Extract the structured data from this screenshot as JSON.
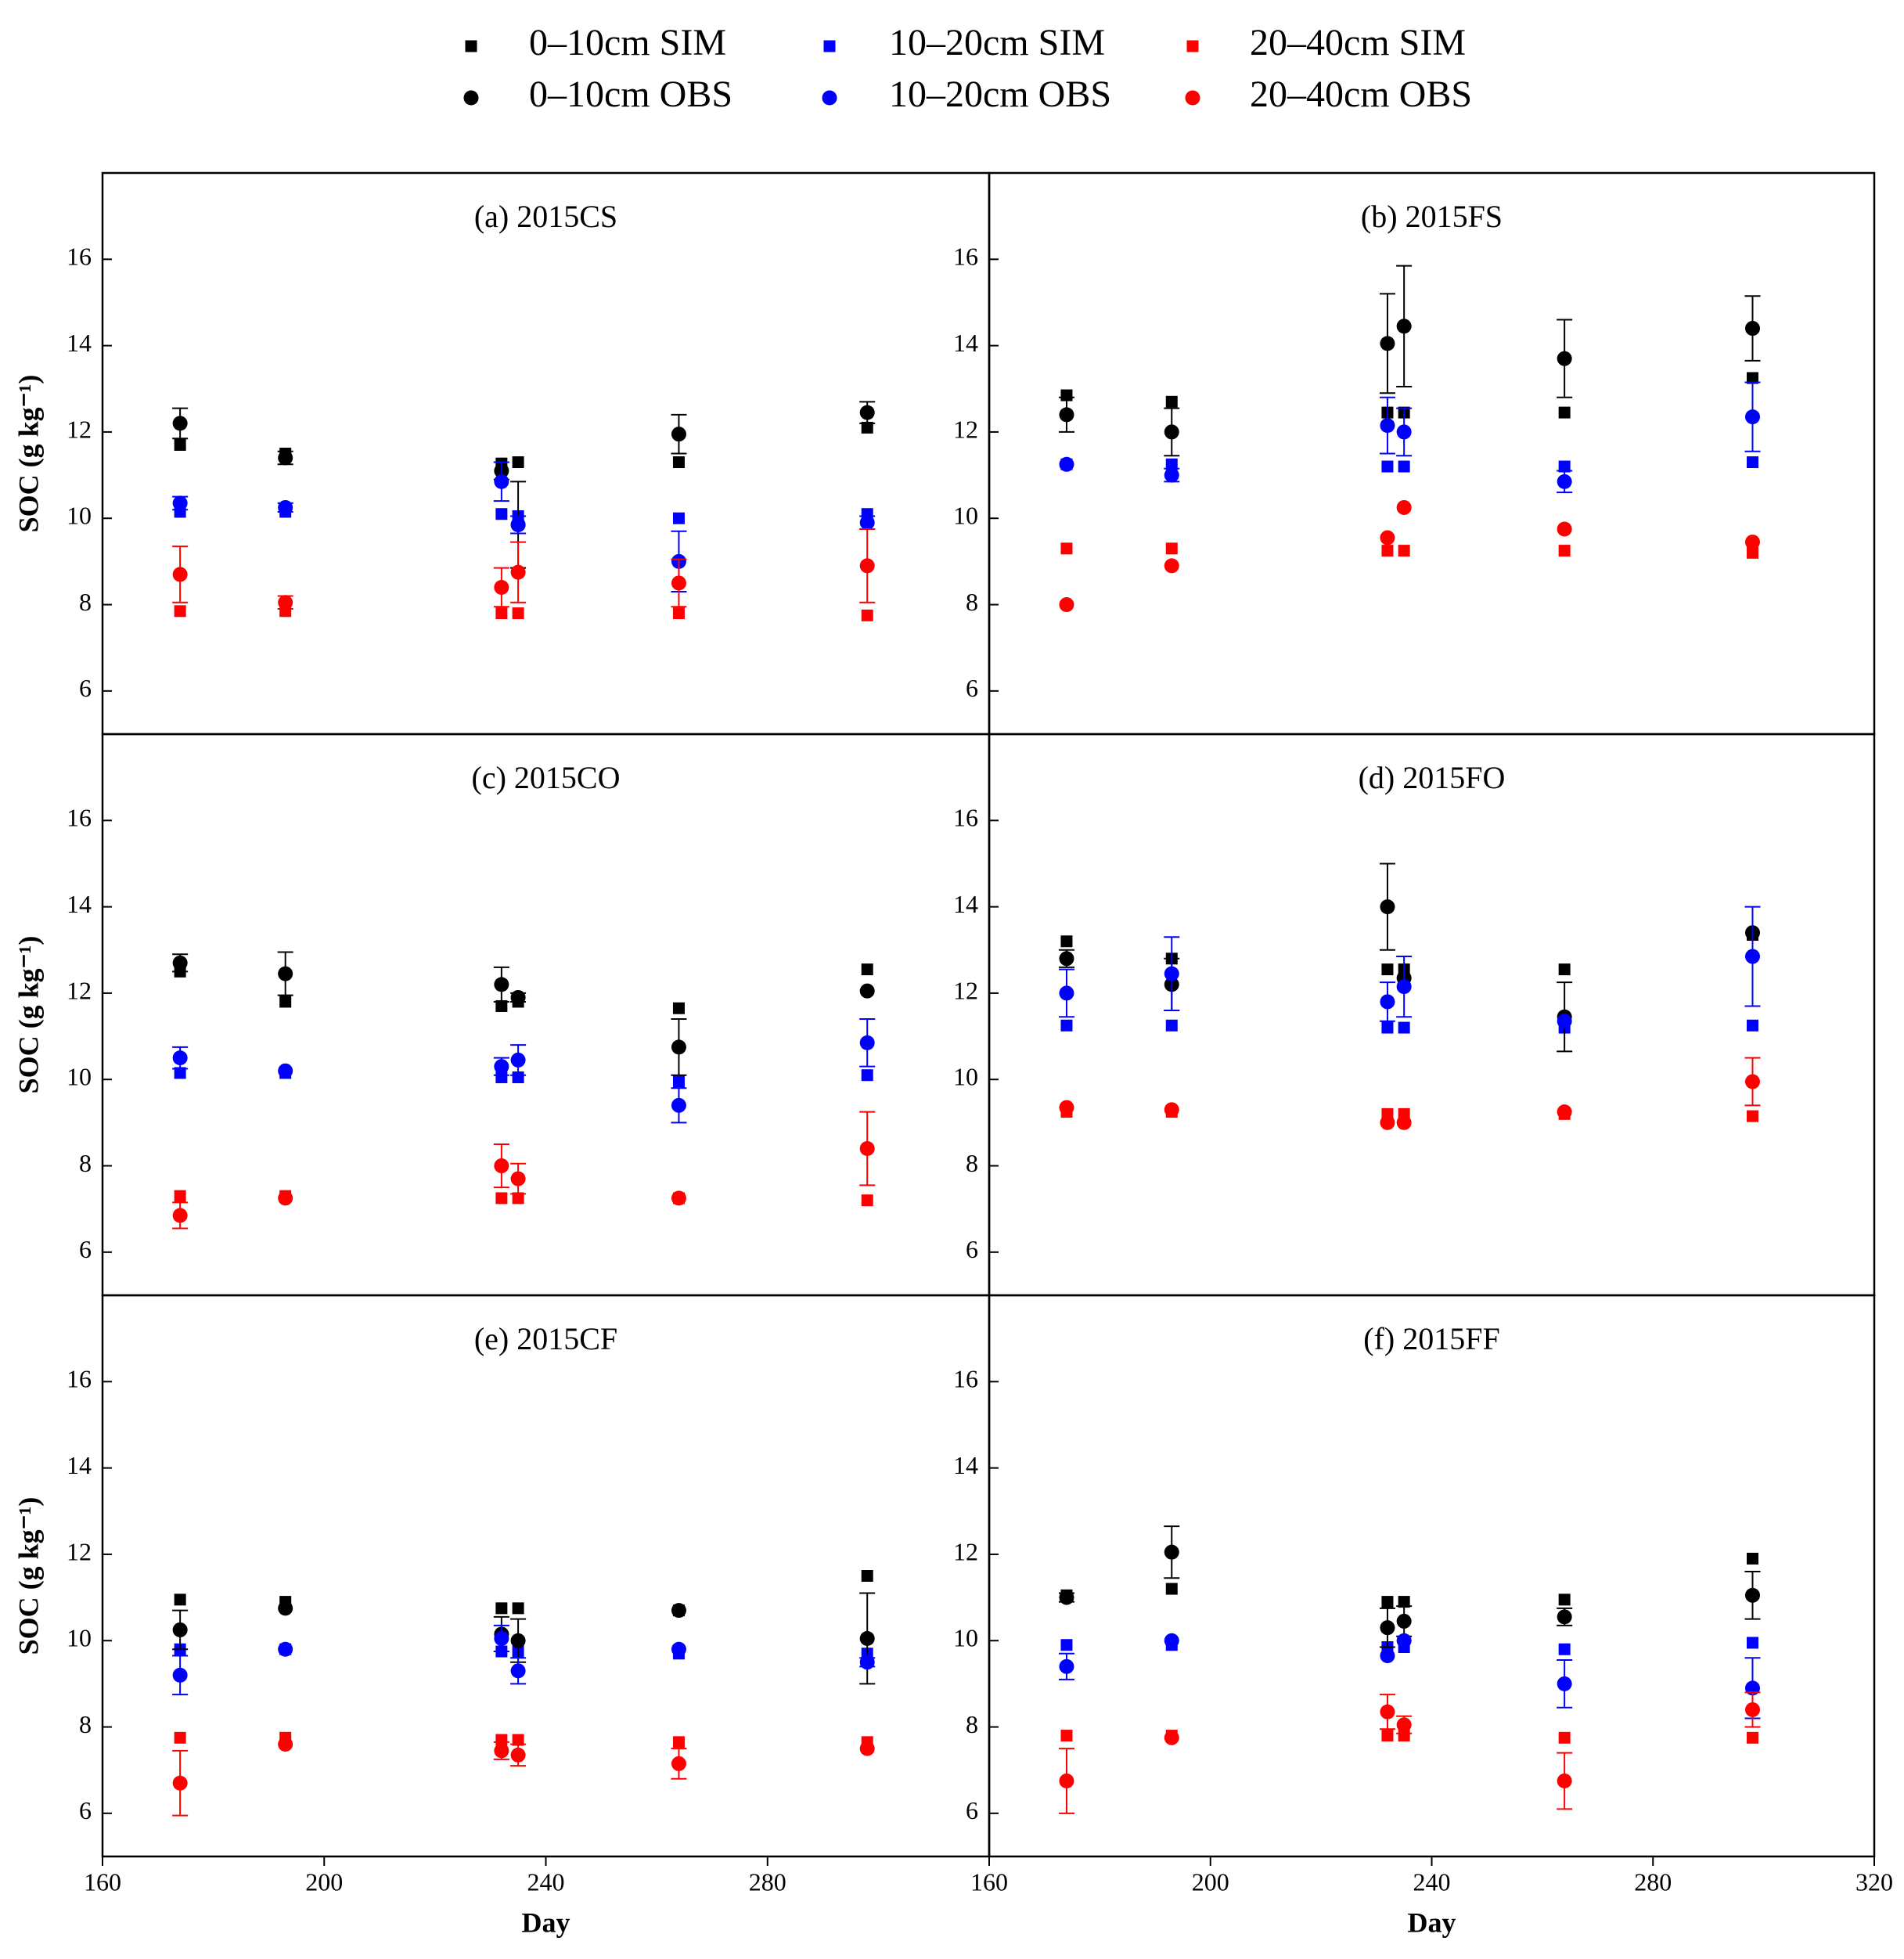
{
  "legend": [
    {
      "name": "0–10cm SIM",
      "color": "#000000",
      "marker": "square"
    },
    {
      "name": "10–20cm SIM",
      "color": "#0000ff",
      "marker": "square"
    },
    {
      "name": "20–40cm SIM",
      "color": "#ff0000",
      "marker": "square"
    },
    {
      "name": "0–10cm OBS",
      "color": "#000000",
      "marker": "circle"
    },
    {
      "name": "10–20cm OBS",
      "color": "#0000ff",
      "marker": "circle"
    },
    {
      "name": "20–40cm OBS",
      "color": "#ff0000",
      "marker": "circle"
    }
  ],
  "chart_data": [
    {
      "type": "scatter",
      "title": "(a) 2015CS",
      "y_label": "SOC (g kg⁻¹)",
      "x": [
        174,
        193,
        232,
        235,
        264,
        298
      ],
      "xlim": [
        160,
        320
      ],
      "ylim": [
        5,
        18
      ],
      "yticks": [
        6,
        8,
        10,
        12,
        14,
        16
      ],
      "series": [
        {
          "values": [
            11.7,
            11.5,
            11.27,
            11.3,
            11.3,
            12.1
          ]
        },
        {
          "values": [
            10.15,
            10.15,
            10.1,
            10.05,
            10.0,
            10.1
          ]
        },
        {
          "values": [
            7.85,
            7.85,
            7.8,
            7.8,
            7.8,
            7.75
          ]
        },
        {
          "values": [
            12.2,
            11.4,
            11.1,
            9.85,
            11.95,
            12.45
          ],
          "errors": [
            0.35,
            0.15,
            0.2,
            1.0,
            0.45,
            0.25
          ]
        },
        {
          "values": [
            10.35,
            10.25,
            10.85,
            9.85,
            9.0,
            9.9
          ],
          "errors": [
            0.15,
            0.1,
            0.45,
            0.2,
            0.7,
            0.15
          ]
        },
        {
          "values": [
            8.7,
            8.05,
            8.4,
            8.75,
            8.5,
            8.9
          ],
          "errors": [
            0.65,
            0.15,
            0.45,
            0.7,
            0.55,
            0.85
          ]
        }
      ]
    },
    {
      "type": "scatter",
      "title": "(b) 2015FS",
      "x": [
        174,
        193,
        232,
        235,
        264,
        298
      ],
      "xlim": [
        160,
        320
      ],
      "ylim": [
        5,
        18
      ],
      "yticks": [
        6,
        8,
        10,
        12,
        14,
        16
      ],
      "series": [
        {
          "values": [
            12.85,
            12.7,
            12.45,
            12.45,
            12.45,
            13.25
          ]
        },
        {
          "values": [
            11.25,
            11.25,
            11.2,
            11.2,
            11.2,
            11.3
          ]
        },
        {
          "values": [
            9.3,
            9.3,
            9.25,
            9.25,
            9.25,
            9.2
          ]
        },
        {
          "values": [
            12.4,
            12.0,
            14.05,
            14.45,
            13.7,
            14.4
          ],
          "errors": [
            0.4,
            0.55,
            1.15,
            1.4,
            0.9,
            0.75
          ]
        },
        {
          "values": [
            11.25,
            11.0,
            12.15,
            12.0,
            10.85,
            12.35
          ],
          "errors": [
            null,
            0.15,
            0.65,
            0.55,
            0.25,
            0.8
          ]
        },
        {
          "values": [
            8.0,
            8.9,
            9.55,
            10.25,
            9.75,
            9.45
          ],
          "errors": [
            null,
            null,
            null,
            null,
            null,
            null
          ]
        }
      ]
    },
    {
      "type": "scatter",
      "title": "(c) 2015CO",
      "y_label": "SOC (g kg⁻¹)",
      "x": [
        174,
        193,
        232,
        235,
        264,
        298
      ],
      "xlim": [
        160,
        320
      ],
      "ylim": [
        5,
        18
      ],
      "yticks": [
        6,
        8,
        10,
        12,
        14,
        16
      ],
      "series": [
        {
          "values": [
            12.5,
            11.8,
            11.7,
            11.8,
            11.65,
            12.55
          ]
        },
        {
          "values": [
            10.15,
            10.15,
            10.05,
            10.05,
            9.95,
            10.1
          ]
        },
        {
          "values": [
            7.3,
            7.3,
            7.25,
            7.25,
            7.25,
            7.2
          ]
        },
        {
          "values": [
            12.7,
            12.45,
            12.2,
            11.9,
            10.75,
            12.05
          ],
          "errors": [
            0.2,
            0.5,
            0.4,
            0.1,
            0.65,
            null
          ]
        },
        {
          "values": [
            10.5,
            10.2,
            10.3,
            10.45,
            9.4,
            10.85
          ],
          "errors": [
            0.25,
            null,
            0.2,
            0.35,
            0.4,
            0.55
          ]
        },
        {
          "values": [
            6.85,
            7.25,
            8.0,
            7.7,
            7.25,
            8.4
          ],
          "errors": [
            0.3,
            null,
            0.5,
            0.35,
            null,
            0.85
          ]
        }
      ]
    },
    {
      "type": "scatter",
      "title": "(d) 2015FO",
      "x": [
        174,
        193,
        232,
        235,
        264,
        298
      ],
      "xlim": [
        160,
        320
      ],
      "ylim": [
        5,
        18
      ],
      "yticks": [
        6,
        8,
        10,
        12,
        14,
        16
      ],
      "series": [
        {
          "values": [
            13.2,
            12.8,
            12.55,
            12.55,
            12.55,
            13.35
          ]
        },
        {
          "values": [
            11.25,
            11.25,
            11.2,
            11.2,
            11.2,
            11.25
          ]
        },
        {
          "values": [
            9.25,
            9.25,
            9.2,
            9.2,
            9.2,
            9.15
          ]
        },
        {
          "values": [
            12.8,
            12.2,
            14.0,
            12.35,
            11.45,
            13.4
          ],
          "errors": [
            0.2,
            0.6,
            1.0,
            null,
            0.8,
            null
          ]
        },
        {
          "values": [
            12.0,
            12.45,
            11.8,
            12.15,
            11.35,
            12.85
          ],
          "errors": [
            0.55,
            0.85,
            0.45,
            0.7,
            null,
            1.15
          ]
        },
        {
          "values": [
            9.35,
            9.3,
            9.0,
            9.0,
            9.25,
            9.95
          ],
          "errors": [
            null,
            null,
            null,
            null,
            null,
            0.55
          ]
        }
      ]
    },
    {
      "type": "scatter",
      "title": "(e) 2015CF",
      "y_label": "SOC (g kg⁻¹)",
      "x_label": "Day",
      "x": [
        174,
        193,
        232,
        235,
        264,
        298
      ],
      "xlim": [
        160,
        320
      ],
      "xticks": [
        160,
        200,
        240,
        280
      ],
      "ylim": [
        5,
        18
      ],
      "yticks": [
        6,
        8,
        10,
        12,
        14,
        16
      ],
      "series": [
        {
          "values": [
            10.95,
            10.9,
            10.75,
            10.75,
            10.7,
            11.5
          ]
        },
        {
          "values": [
            9.8,
            9.8,
            9.75,
            9.75,
            9.7,
            9.7
          ]
        },
        {
          "values": [
            7.75,
            7.75,
            7.7,
            7.7,
            7.65,
            7.65
          ]
        },
        {
          "values": [
            10.25,
            10.75,
            10.15,
            10.0,
            10.7,
            10.05
          ],
          "errors": [
            0.45,
            null,
            0.4,
            0.5,
            null,
            1.05
          ]
        },
        {
          "values": [
            9.2,
            9.8,
            10.05,
            9.3,
            9.8,
            9.5
          ],
          "errors": [
            0.45,
            null,
            0.3,
            0.3,
            null,
            0.1
          ]
        },
        {
          "values": [
            6.7,
            7.6,
            7.45,
            7.35,
            7.15,
            7.5
          ],
          "errors": [
            0.75,
            null,
            0.2,
            0.25,
            0.35,
            null
          ]
        }
      ]
    },
    {
      "type": "scatter",
      "title": "(f) 2015FF",
      "x_label": "Day",
      "x": [
        174,
        193,
        232,
        235,
        264,
        298
      ],
      "xlim": [
        160,
        320
      ],
      "xticks": [
        160,
        200,
        240,
        280,
        320
      ],
      "ylim": [
        5,
        18
      ],
      "yticks": [
        6,
        8,
        10,
        12,
        14,
        16
      ],
      "series": [
        {
          "values": [
            11.05,
            11.2,
            10.9,
            10.9,
            10.95,
            11.9
          ]
        },
        {
          "values": [
            9.9,
            9.9,
            9.85,
            9.85,
            9.8,
            9.95
          ]
        },
        {
          "values": [
            7.8,
            7.8,
            7.8,
            7.8,
            7.75,
            7.75
          ]
        },
        {
          "values": [
            11.0,
            12.05,
            10.3,
            10.45,
            10.55,
            11.05
          ],
          "errors": [
            0.1,
            0.6,
            0.45,
            0.35,
            0.2,
            0.55
          ]
        },
        {
          "values": [
            9.4,
            10.0,
            9.65,
            10.0,
            9.0,
            8.9
          ],
          "errors": [
            0.3,
            null,
            null,
            null,
            0.55,
            0.7
          ]
        },
        {
          "values": [
            6.75,
            7.75,
            8.35,
            8.05,
            6.75,
            8.4
          ],
          "errors": [
            0.75,
            null,
            0.4,
            0.2,
            0.65,
            0.4
          ]
        }
      ]
    }
  ]
}
